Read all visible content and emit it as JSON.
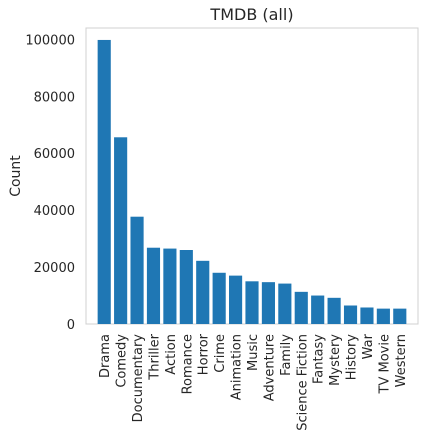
{
  "chart_data": {
    "type": "bar",
    "title": "TMDB (all)",
    "xlabel": "",
    "ylabel": "Count",
    "ylim": [
      0,
      104000
    ],
    "yticks": [
      0,
      20000,
      40000,
      60000,
      80000,
      100000
    ],
    "grid": false,
    "bar_color": "#1f77b4",
    "categories": [
      "Drama",
      "Comedy",
      "Documentary",
      "Thriller",
      "Action",
      "Romance",
      "Horror",
      "Crime",
      "Animation",
      "Music",
      "Adventure",
      "Family",
      "Science Fiction",
      "Fantasy",
      "Mystery",
      "History",
      "War",
      "TV Movie",
      "Western"
    ],
    "values": [
      99800,
      65600,
      37700,
      26800,
      26500,
      26000,
      22200,
      18000,
      17000,
      15000,
      14700,
      14200,
      11300,
      10000,
      9200,
      6500,
      5800,
      5400,
      5400
    ]
  }
}
